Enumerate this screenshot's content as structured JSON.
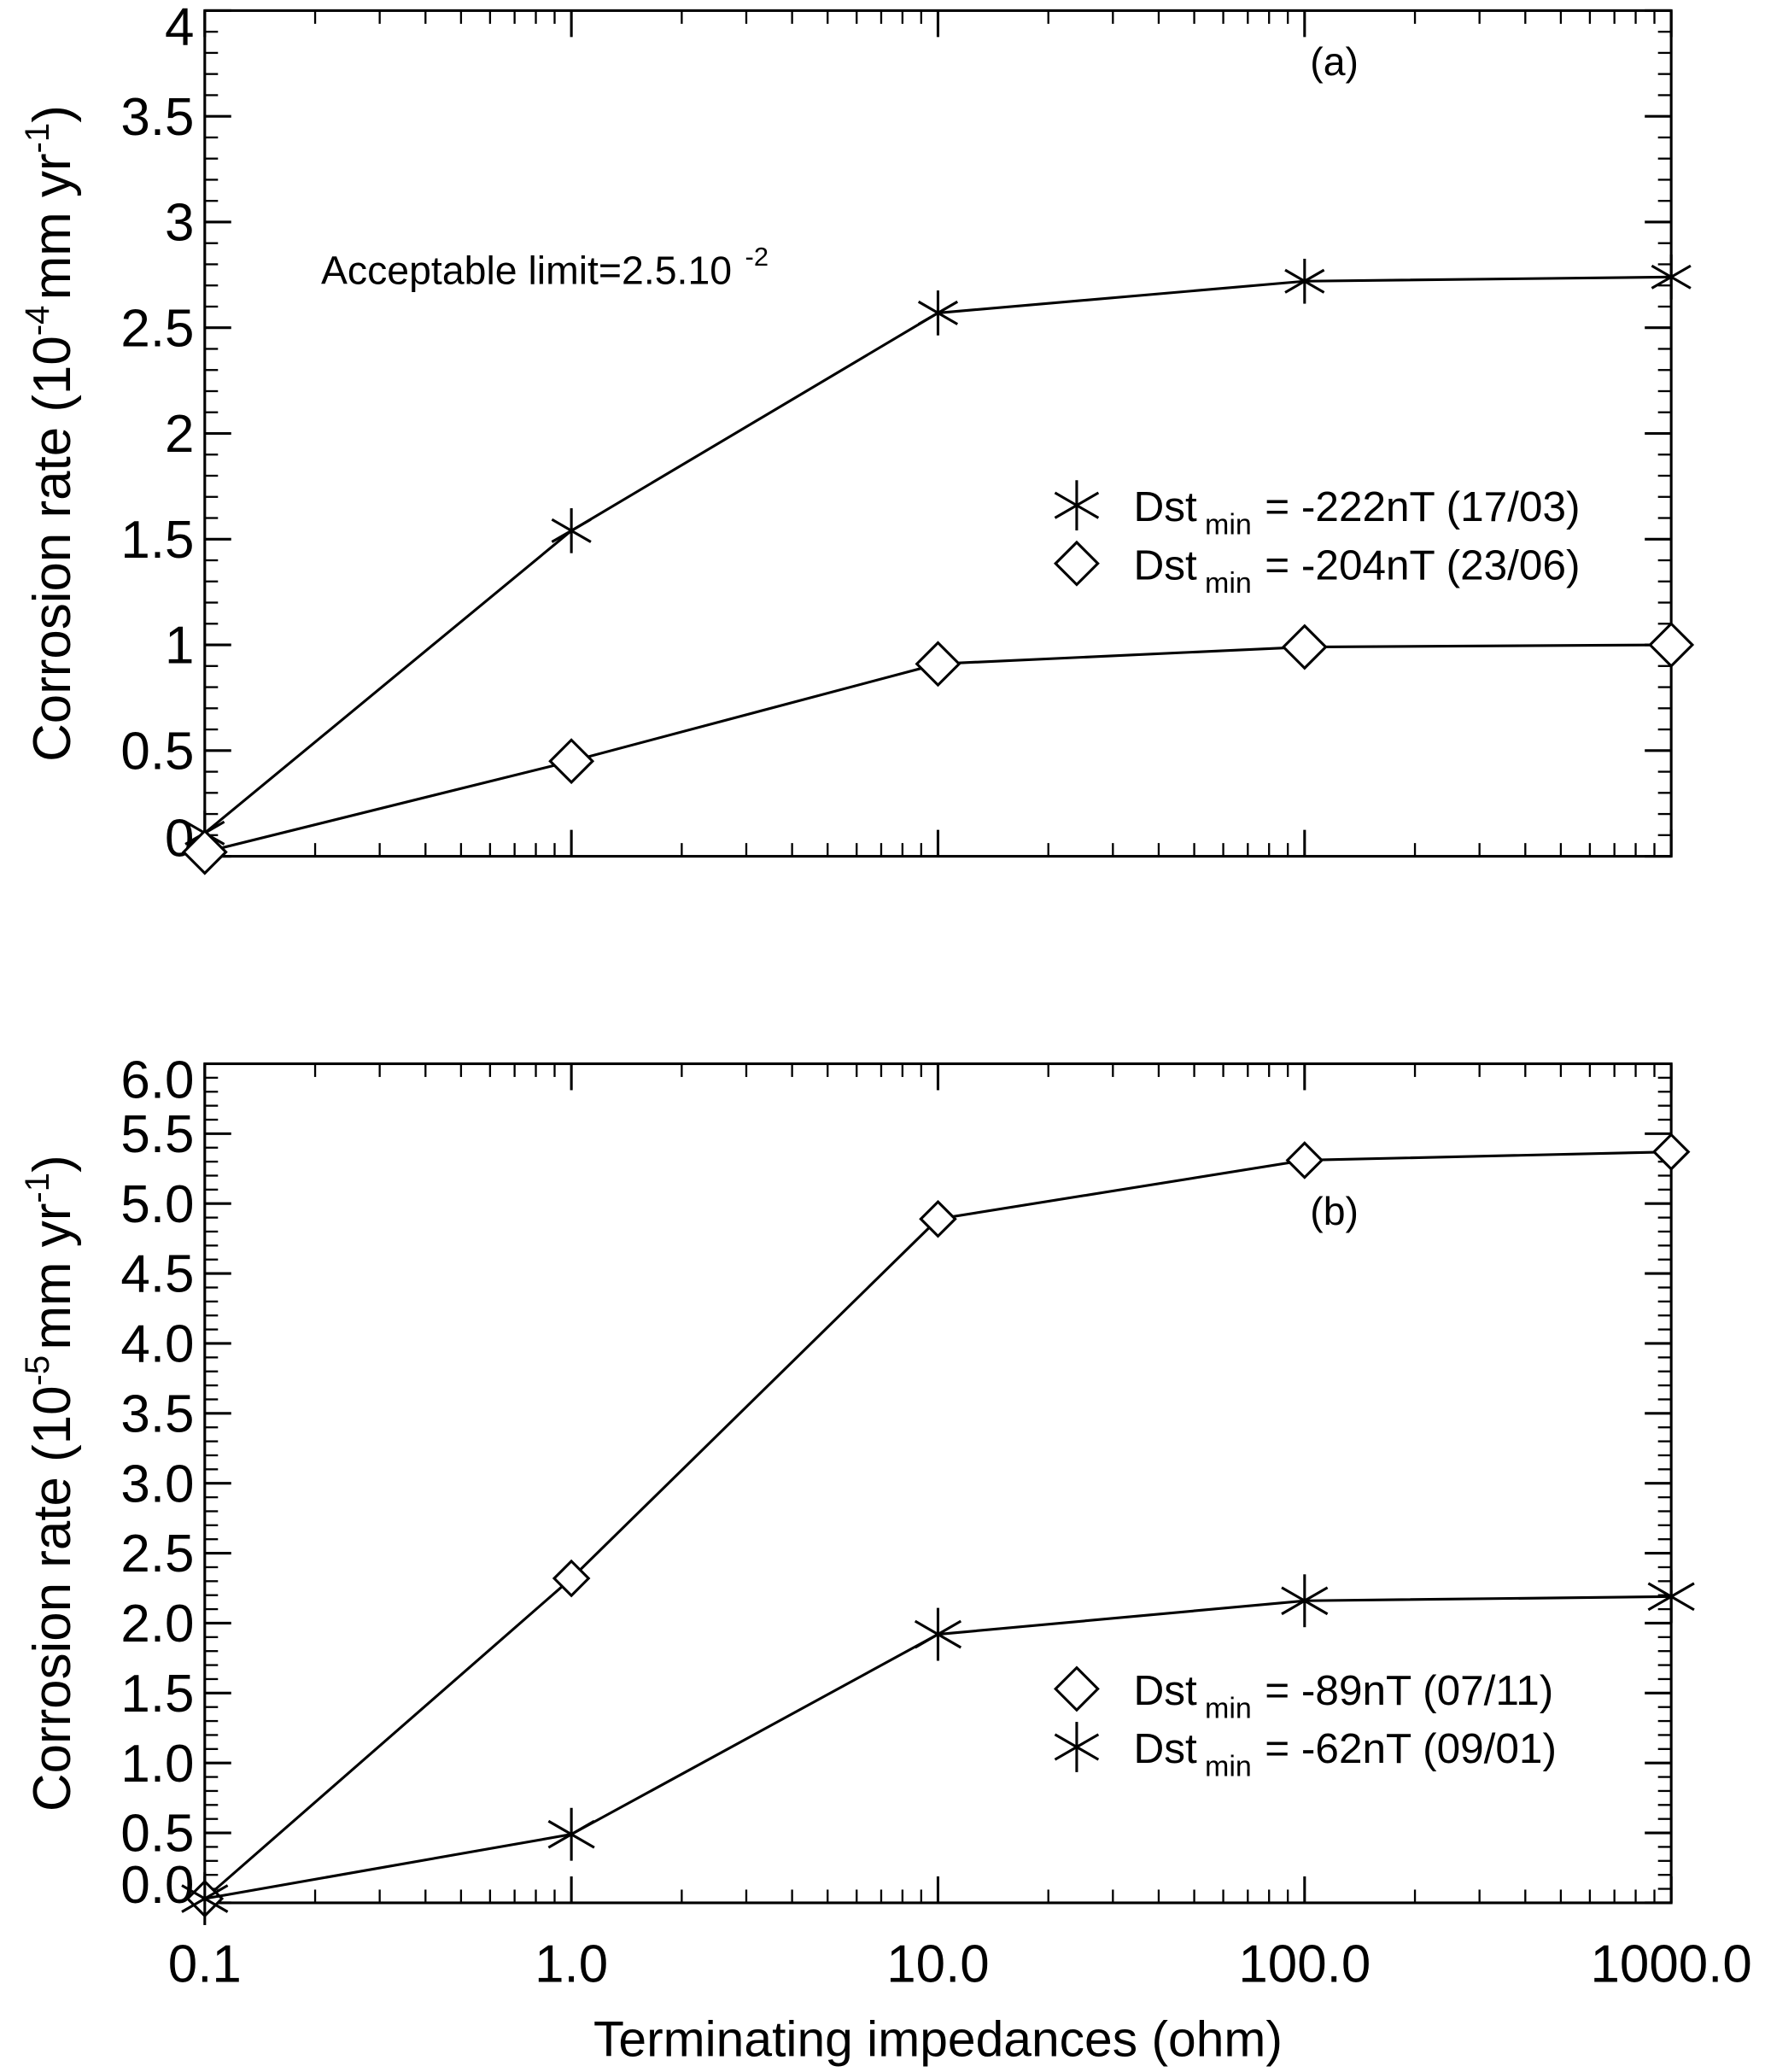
{
  "chart_data": [
    {
      "type": "line",
      "log_x": true,
      "panel_label": "(a)",
      "ylabel": {
        "text": "Corrosion rate (10",
        "exp1": "-4",
        "mid": "mm yr",
        "exp2": "-1",
        "end": ")"
      },
      "annotation": {
        "text": "Acceptable limit=2.5.10",
        "exp": "-2"
      },
      "x": [
        0.1,
        1,
        10,
        100,
        1000
      ],
      "xlim": [
        0.1,
        1000
      ],
      "xticks": [
        0.1,
        1,
        10,
        100,
        1000
      ],
      "xtick_labels": false,
      "ylim": [
        0,
        4
      ],
      "yticks": [
        0,
        0.5,
        1,
        1.5,
        2,
        2.5,
        3,
        3.5,
        4
      ],
      "legend": "center right",
      "series": [
        {
          "legend_label": {
            "main": "Dst",
            "sub": "min",
            "rest": "= -222nT (17/03)"
          },
          "marker": "asterisk",
          "color": "#000000",
          "values": [
            0.11,
            1.54,
            2.57,
            2.72,
            2.74
          ]
        },
        {
          "legend_label": {
            "main": "Dst",
            "sub": "min",
            "rest": "= -204nT (23/06)"
          },
          "marker": "diamond",
          "color": "#000000",
          "values": [
            0.02,
            0.45,
            0.91,
            0.99,
            1.0
          ]
        }
      ]
    },
    {
      "type": "line",
      "log_x": true,
      "panel_label": "(b)",
      "ylabel": {
        "text": "Corrosion rate (10",
        "exp1": "-5",
        "mid": "mm yr",
        "exp2": "-1",
        "end": ")"
      },
      "xlabel": "Terminating impedances (ohm)",
      "x": [
        0.1,
        1,
        10,
        100,
        1000
      ],
      "xlim": [
        0.1,
        1000
      ],
      "xticks": [
        0.1,
        {
          "value": 1,
          "label": "1.0"
        },
        {
          "value": 10,
          "label": "10.0"
        },
        {
          "value": 100,
          "label": "100.0"
        },
        {
          "value": 1000,
          "label": "1000.0"
        }
      ],
      "xtick_labels": true,
      "ylim": [
        0,
        6
      ],
      "yticks": [
        {
          "value": 0,
          "label": "0.0"
        },
        0.5,
        {
          "value": 1,
          "label": "1.0"
        },
        1.5,
        {
          "value": 2,
          "label": "2.0"
        },
        2.5,
        {
          "value": 3,
          "label": "3.0"
        },
        3.5,
        {
          "value": 4,
          "label": "4.0"
        },
        4.5,
        {
          "value": 5,
          "label": "5.0"
        },
        5.5,
        {
          "value": 6,
          "label": "6.0"
        }
      ],
      "legend": "lower right",
      "series": [
        {
          "legend_label": {
            "main": "Dst",
            "sub": "min",
            "rest": "= -89nT (07/11)"
          },
          "marker": "diamond",
          "color": "#000000",
          "values": [
            0.03,
            2.32,
            4.89,
            5.31,
            5.37
          ]
        },
        {
          "legend_label": {
            "main": "Dst",
            "sub": "min",
            "rest": "= -62nT (09/01)"
          },
          "marker": "asterisk",
          "color": "#000000",
          "values": [
            0.03,
            0.49,
            1.92,
            2.16,
            2.19
          ]
        }
      ]
    }
  ]
}
